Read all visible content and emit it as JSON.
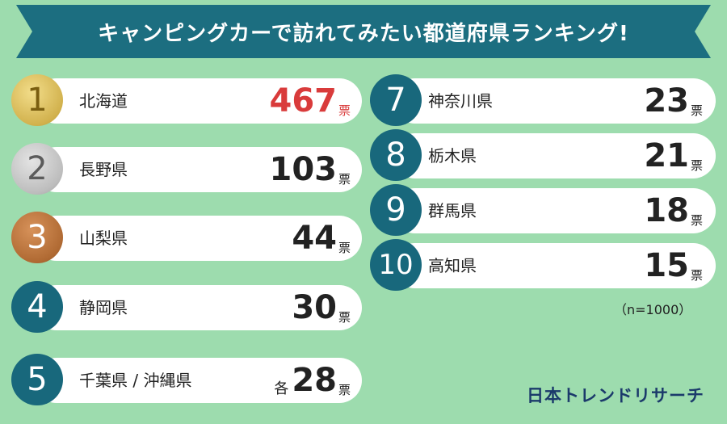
{
  "title": "キャンピングカーで訪れてみたい都道府県ランキング!",
  "unit": "票",
  "note": "（n=1000）",
  "logo": "日本トレンドリサーチ",
  "colors": {
    "background": "#9ddcae",
    "banner": "#1c6e80",
    "rank_badge": "#18687c",
    "highlight": "#d93b3b"
  },
  "chart_data": {
    "type": "table",
    "title": "キャンピングカーで訪れてみたい都道府県ランキング!",
    "columns": [
      "rank",
      "prefecture",
      "votes"
    ],
    "rows": [
      {
        "rank": "1",
        "prefecture": "北海道",
        "votes": "467",
        "prefix": ""
      },
      {
        "rank": "2",
        "prefecture": "長野県",
        "votes": "103",
        "prefix": ""
      },
      {
        "rank": "3",
        "prefecture": "山梨県",
        "votes": "44",
        "prefix": ""
      },
      {
        "rank": "4",
        "prefecture": "静岡県",
        "votes": "30",
        "prefix": ""
      },
      {
        "rank": "5",
        "prefecture": "千葉県 / 沖縄県",
        "votes": "28",
        "prefix": "各"
      },
      {
        "rank": "7",
        "prefecture": "神奈川県",
        "votes": "23",
        "prefix": ""
      },
      {
        "rank": "8",
        "prefecture": "栃木県",
        "votes": "21",
        "prefix": ""
      },
      {
        "rank": "9",
        "prefecture": "群馬県",
        "votes": "18",
        "prefix": ""
      },
      {
        "rank": "10",
        "prefecture": "高知県",
        "votes": "15",
        "prefix": ""
      }
    ]
  }
}
